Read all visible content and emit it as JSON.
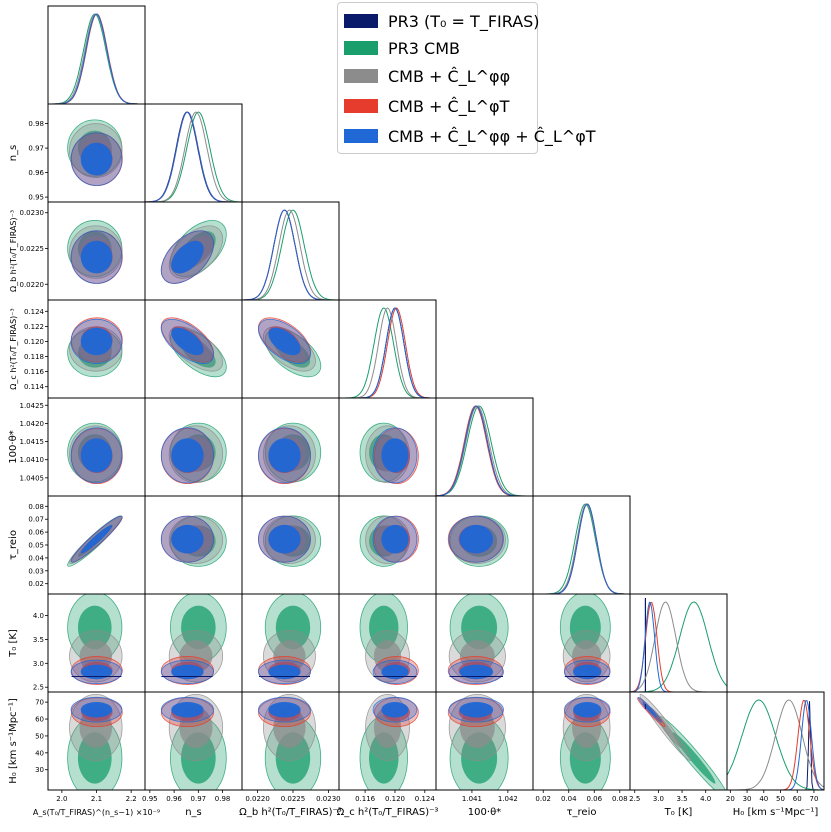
{
  "chart_data": {
    "type": "triangle",
    "title": "",
    "parameters": [
      {
        "id": "As",
        "label": "A_s(T0/T_FIRAS)^(n_s-1) ×10^-9",
        "min": 1.96,
        "max": 2.24,
        "ticks": [
          2.0,
          2.1,
          2.2
        ],
        "tick_labels": [
          "2.0",
          "2.1",
          "2.2"
        ],
        "unit_suffix": "1e-9"
      },
      {
        "id": "ns",
        "label": "n_s",
        "min": 0.948,
        "max": 0.988,
        "ticks": [
          0.95,
          0.96,
          0.97,
          0.98
        ],
        "tick_labels": [
          "0.95",
          "0.96",
          "0.97",
          "0.98"
        ]
      },
      {
        "id": "ombh2",
        "label": "Ω_b h^2 (T0/T_FIRAS)^-3",
        "min": 0.02178,
        "max": 0.02315,
        "ticks": [
          0.022,
          0.0225,
          0.023
        ],
        "tick_labels": [
          "0.0220",
          "0.0225",
          "0.0230"
        ]
      },
      {
        "id": "omch2",
        "label": "Ω_c h^2 (T0/T_FIRAS)^-3",
        "min": 0.1125,
        "max": 0.1255,
        "ticks": [
          0.114,
          0.116,
          0.118,
          0.12,
          0.122,
          0.124
        ],
        "tick_labels": [
          "0.114",
          "0.116",
          "0.118",
          "0.120",
          "0.122",
          "0.124"
        ],
        "x_tick_labels": [
          "0.116",
          "0.120",
          "0.124"
        ]
      },
      {
        "id": "theta",
        "label": "100·θ*",
        "min": 1.04,
        "max": 1.0427,
        "ticks": [
          1.0405,
          1.041,
          1.0415,
          1.042,
          1.0425
        ],
        "tick_labels": [
          "1.0405",
          "1.0410",
          "1.0415",
          "1.0420",
          "1.0425"
        ],
        "x_tick_labels": [
          "1.041",
          "1.042"
        ]
      },
      {
        "id": "tau",
        "label": "τ_reio",
        "min": 0.012,
        "max": 0.088,
        "ticks": [
          0.02,
          0.03,
          0.04,
          0.05,
          0.06,
          0.07,
          0.08
        ],
        "tick_labels": [
          "0.02",
          "0.03",
          "0.04",
          "0.05",
          "0.06",
          "0.07",
          "0.08"
        ],
        "x_tick_labels": [
          "0.02",
          "0.04",
          "0.06",
          "0.08"
        ]
      },
      {
        "id": "T0",
        "label": "T0 [K]",
        "min": 2.4,
        "max": 4.45,
        "ticks": [
          2.5,
          3.0,
          3.5,
          4.0
        ],
        "tick_labels": [
          "2.5",
          "3.0",
          "3.5",
          "4.0"
        ]
      },
      {
        "id": "H0",
        "label": "H0 [km s^-1 Mpc^-1]",
        "min": 18,
        "max": 76,
        "ticks": [
          30,
          40,
          50,
          60,
          70
        ],
        "tick_labels": [
          "30",
          "40",
          "50",
          "60",
          "70"
        ],
        "x_tick_labels": [
          "20",
          "30",
          "40",
          "50",
          "60",
          "70"
        ]
      }
    ],
    "series": [
      {
        "name": "PR3 (T0 = T_FIRAS)",
        "color": "#0a1a6b",
        "mean": [
          2.1,
          0.9653,
          0.02238,
          0.12,
          1.04112,
          0.0544,
          2.7255,
          67.4
        ],
        "sigma": [
          0.03,
          0.0044,
          0.00015,
          0.0012,
          0.00031,
          0.0073,
          0.0,
          0.6
        ]
      },
      {
        "name": "PR3 CMB",
        "color": "#1a9e6c",
        "mean": [
          2.095,
          0.97,
          0.0225,
          0.1185,
          1.0412,
          0.053,
          3.75,
          37.0
        ],
        "sigma": [
          0.032,
          0.0047,
          0.00016,
          0.0013,
          0.00033,
          0.008,
          0.3,
          10.0
        ]
      },
      {
        "name": "CMB + C_L^φφ",
        "color": "#8c8c8c",
        "mean": [
          2.098,
          0.969,
          0.02245,
          0.119,
          1.04115,
          0.054,
          3.15,
          55.0
        ],
        "sigma": [
          0.031,
          0.0045,
          0.00015,
          0.0012,
          0.00032,
          0.0075,
          0.22,
          8.0
        ]
      },
      {
        "name": "CMB + C_L^φT",
        "color": "#e53c2e",
        "mean": [
          2.101,
          0.9655,
          0.02238,
          0.1202,
          1.0411,
          0.0545,
          2.85,
          64.0
        ],
        "sigma": [
          0.03,
          0.0044,
          0.00015,
          0.0012,
          0.00031,
          0.0073,
          0.12,
          3.5
        ]
      },
      {
        "name": "CMB + C_L^φφ + C_L^φT",
        "color": "#1f68d6",
        "mean": [
          2.1,
          0.9655,
          0.02238,
          0.12,
          1.04112,
          0.0545,
          2.82,
          65.5
        ],
        "sigma": [
          0.03,
          0.0044,
          0.00015,
          0.0012,
          0.00031,
          0.0073,
          0.1,
          3.0
        ]
      }
    ],
    "correlations": {
      "As-tau": 0.95,
      "ns-ombh2": 0.5,
      "ns-omch2": -0.6,
      "ombh2-omch2": -0.55,
      "T0-H0": -0.97
    }
  },
  "legend": {
    "entries": [
      {
        "label": "PR3 (T₀ = T_FIRAS)",
        "color": "#0a1a6b"
      },
      {
        "label": "PR3 CMB",
        "color": "#1a9e6c"
      },
      {
        "label": "CMB + Ĉ_L^φφ",
        "color": "#8c8c8c"
      },
      {
        "label": "CMB + Ĉ_L^φT",
        "color": "#e53c2e"
      },
      {
        "label": "CMB + Ĉ_L^φφ + Ĉ_L^φT",
        "color": "#1f68d6"
      }
    ]
  },
  "axis_labels": {
    "x": [
      "A_s(T₀/T_FIRAS)^(n_s−1) ×10⁻⁹",
      "n_s",
      "Ω_b h²(T₀/T_FIRAS)⁻³",
      "Ω_c h²(T₀/T_FIRAS)⁻³",
      "100·θ*",
      "τ_reio",
      "T₀ [K]",
      "H₀ [km s⁻¹Mpc⁻¹]"
    ],
    "y": [
      "n_s",
      "Ω_b h²(T₀/T_FIRAS)⁻³",
      "Ω_c h²(T₀/T_FIRAS)⁻³",
      "100·θ*",
      "τ_reio",
      "T₀ [K]",
      "H₀ [km s⁻¹Mpc⁻¹]"
    ]
  }
}
